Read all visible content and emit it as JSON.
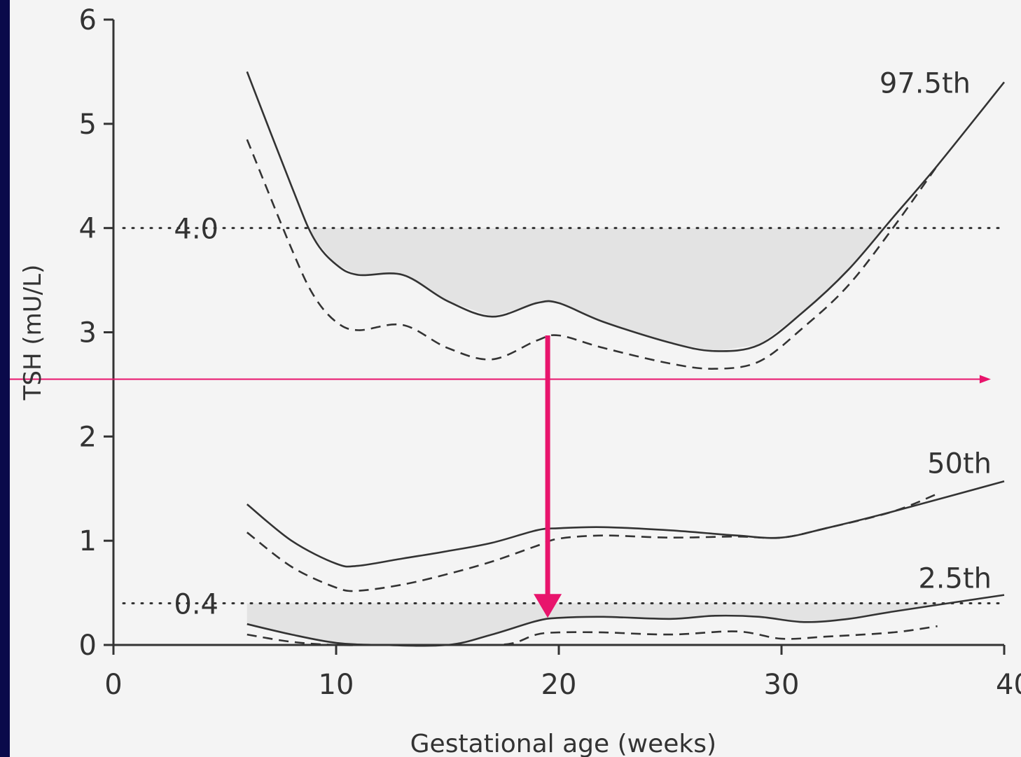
{
  "chart_data": {
    "type": "line",
    "xlabel": "Gestational age (weeks)",
    "ylabel": "TSH (mU/L)",
    "xlim": [
      0,
      40
    ],
    "ylim": [
      0,
      6
    ],
    "x_ticks": [
      "0",
      "10",
      "20",
      "30",
      "40"
    ],
    "y_ticks": [
      "0",
      "1",
      "2",
      "3",
      "4",
      "5",
      "6"
    ],
    "reference_lines": [
      {
        "label": "4.0",
        "y": 4.0,
        "style": "dotted"
      },
      {
        "label": "0.4",
        "y": 0.4,
        "style": "dotted"
      }
    ],
    "series": [
      {
        "name": "97.5th",
        "style": "solid",
        "x": [
          6,
          8,
          9,
          10,
          11,
          13,
          15,
          17,
          19,
          20,
          22,
          25,
          27,
          29,
          31,
          33,
          35,
          37,
          40
        ],
        "y": [
          5.5,
          4.4,
          3.9,
          3.65,
          3.55,
          3.55,
          3.3,
          3.15,
          3.28,
          3.28,
          3.1,
          2.9,
          2.82,
          2.88,
          3.2,
          3.6,
          4.1,
          4.6,
          5.4
        ]
      },
      {
        "style": "dashed",
        "x": [
          6,
          8,
          9,
          10,
          11,
          13,
          15,
          17,
          19,
          20,
          22,
          25,
          27,
          29,
          31,
          33,
          35,
          37
        ],
        "y": [
          4.85,
          3.8,
          3.35,
          3.1,
          3.02,
          3.07,
          2.85,
          2.74,
          2.92,
          2.97,
          2.85,
          2.7,
          2.65,
          2.72,
          3.05,
          3.45,
          4.0,
          4.6
        ]
      },
      {
        "name": "50th",
        "style": "solid",
        "x": [
          6,
          8,
          10,
          11,
          13,
          15,
          17,
          19,
          20,
          22,
          25,
          28,
          30,
          32,
          35,
          40
        ],
        "y": [
          1.35,
          1.0,
          0.78,
          0.76,
          0.83,
          0.9,
          0.98,
          1.1,
          1.12,
          1.13,
          1.1,
          1.05,
          1.03,
          1.12,
          1.28,
          1.57
        ]
      },
      {
        "style": "dashed",
        "x": [
          6,
          8,
          10,
          11,
          13,
          15,
          17,
          19,
          20,
          22,
          25,
          28,
          30,
          32,
          35,
          37
        ],
        "y": [
          1.08,
          0.75,
          0.55,
          0.52,
          0.58,
          0.68,
          0.8,
          0.95,
          1.02,
          1.05,
          1.03,
          1.04,
          1.03,
          1.12,
          1.28,
          1.45
        ]
      },
      {
        "name": "2.5th",
        "style": "solid",
        "x": [
          6,
          8,
          10,
          12,
          15,
          17,
          19,
          20,
          22,
          25,
          27,
          29,
          31,
          33,
          35,
          40
        ],
        "y": [
          0.2,
          0.1,
          0.02,
          0.0,
          0.0,
          0.1,
          0.23,
          0.26,
          0.27,
          0.25,
          0.28,
          0.27,
          0.22,
          0.25,
          0.32,
          0.48
        ]
      },
      {
        "style": "dashed",
        "x": [
          6,
          8,
          10,
          12,
          15,
          17,
          18,
          19,
          20,
          22,
          25,
          28,
          30,
          32,
          35,
          37
        ],
        "y": [
          0.1,
          0.03,
          0.0,
          0.0,
          0.0,
          0.0,
          0.02,
          0.1,
          0.12,
          0.12,
          0.1,
          0.13,
          0.06,
          0.08,
          0.12,
          0.18
        ]
      }
    ],
    "annotations": {
      "vertical_arrow": {
        "x": 19.5,
        "y_from": 2.97,
        "y_to": 0.26,
        "color": "#e8146c"
      },
      "horizontal_arrow": {
        "y": 2.55,
        "x_from": 0.0,
        "x_to": 39.4,
        "color": "#e8146c"
      }
    },
    "colors": {
      "line": "#333333",
      "shade": "#e3e3e3",
      "accent": "#e8146c",
      "frame": "#0a0a4a"
    }
  }
}
